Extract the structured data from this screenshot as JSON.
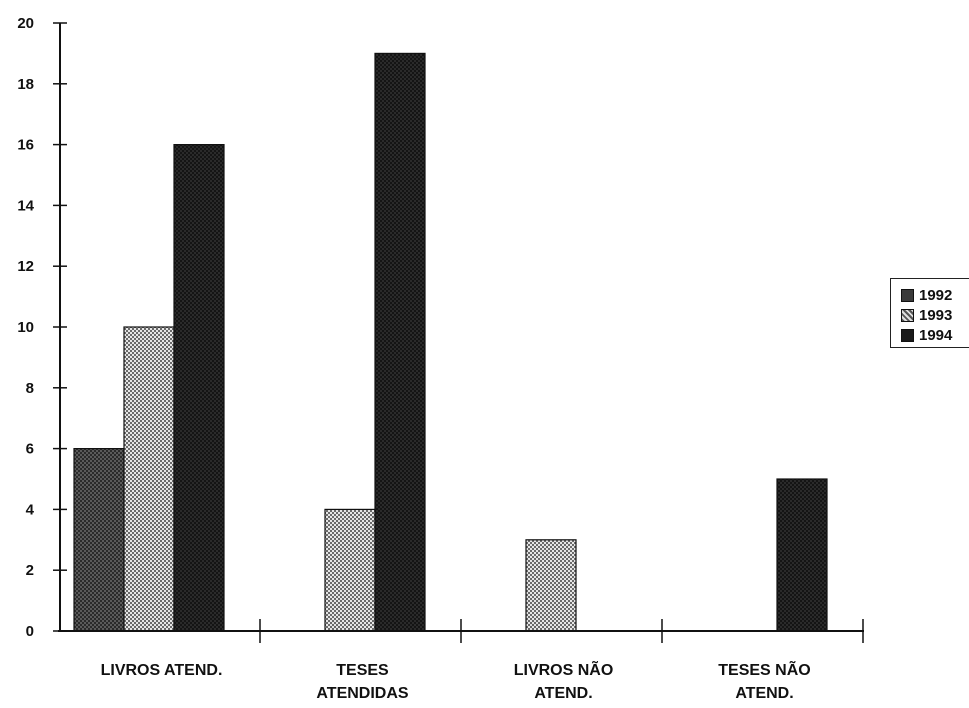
{
  "chart_data": {
    "type": "bar",
    "categories": [
      "LIVROS ATEND.",
      "TESES ATENDIDAS",
      "LIVROS NÃO ATEND.",
      "TESES NÃO ATEND."
    ],
    "category_label_lines": [
      [
        "LIVROS ATEND."
      ],
      [
        "TESES",
        "ATENDIDAS"
      ],
      [
        "LIVROS NÃO",
        "ATEND."
      ],
      [
        "TESES NÃO",
        "ATEND."
      ]
    ],
    "series": [
      {
        "name": "1992",
        "values": [
          6,
          0,
          0,
          0
        ],
        "color": "#4a4a4a",
        "pattern": "dense-dots"
      },
      {
        "name": "1993",
        "values": [
          10,
          4,
          3,
          0
        ],
        "color": "#b8b8b8",
        "pattern": "checker"
      },
      {
        "name": "1994",
        "values": [
          16,
          19,
          0,
          5
        ],
        "color": "#1e1e1e",
        "pattern": "solid-dark"
      }
    ],
    "yticks": [
      0,
      2,
      4,
      6,
      8,
      10,
      12,
      14,
      16,
      18,
      20
    ],
    "ylim": [
      0,
      20
    ],
    "title": "",
    "xlabel": "",
    "ylabel": "",
    "grid": false,
    "legend_position": "right"
  }
}
